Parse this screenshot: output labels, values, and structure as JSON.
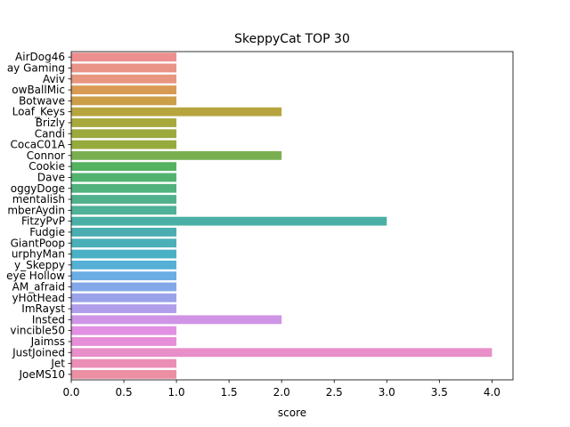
{
  "chart_data": {
    "type": "bar",
    "orientation": "horizontal",
    "title": "SkeppyCat TOP 30",
    "xlabel": "score",
    "ylabel": "",
    "xlim": [
      0,
      4.2
    ],
    "xticks": [
      "0.0",
      "0.5",
      "1.0",
      "1.5",
      "2.0",
      "2.5",
      "3.0",
      "3.5",
      "4.0"
    ],
    "grid": false,
    "categories": [
      "AirDog46",
      "ay Gaming",
      "Aviv",
      "owBallMic",
      "Botwave",
      "Loaf_Keys",
      "Brizly",
      "Candi",
      "CocaC01A",
      "Connor",
      "Cookie",
      "Dave",
      "oggyDoge",
      "mentalish",
      "mberAydin",
      "FitzyPvP",
      "Fudgie",
      "GiantPoop",
      "urphyMan",
      "y_Skeppy",
      "eye Hollow",
      "AM_afraid",
      "yHotHead",
      "ImRayst",
      "Insted",
      "vincible50",
      "Jaimss",
      "JustJoined",
      "Jet",
      "JoeMS10"
    ],
    "values": [
      1,
      1,
      1,
      1,
      1,
      2,
      1,
      1,
      1,
      2,
      1,
      1,
      1,
      1,
      1,
      3,
      1,
      1,
      1,
      1,
      1,
      1,
      1,
      1,
      2,
      1,
      1,
      4,
      1,
      1
    ],
    "colors": [
      "#ec8f8e",
      "#e99486",
      "#e8967f",
      "#d99a53",
      "#cc9e47",
      "#b6a53f",
      "#a7a93d",
      "#9ba93d",
      "#95ab3d",
      "#7aaf4f",
      "#53b360",
      "#52b370",
      "#51b27e",
      "#50b18c",
      "#4eb198",
      "#4ab0a5",
      "#4aaeb1",
      "#4ab0b8",
      "#4ab0c4",
      "#56b0d6",
      "#6aade4",
      "#83a8ea",
      "#9aa3ea",
      "#b19eea",
      "#cf94e6",
      "#e190e3",
      "#e78ed8",
      "#e88ec8",
      "#eb8eb6",
      "#ec8fa3"
    ]
  }
}
